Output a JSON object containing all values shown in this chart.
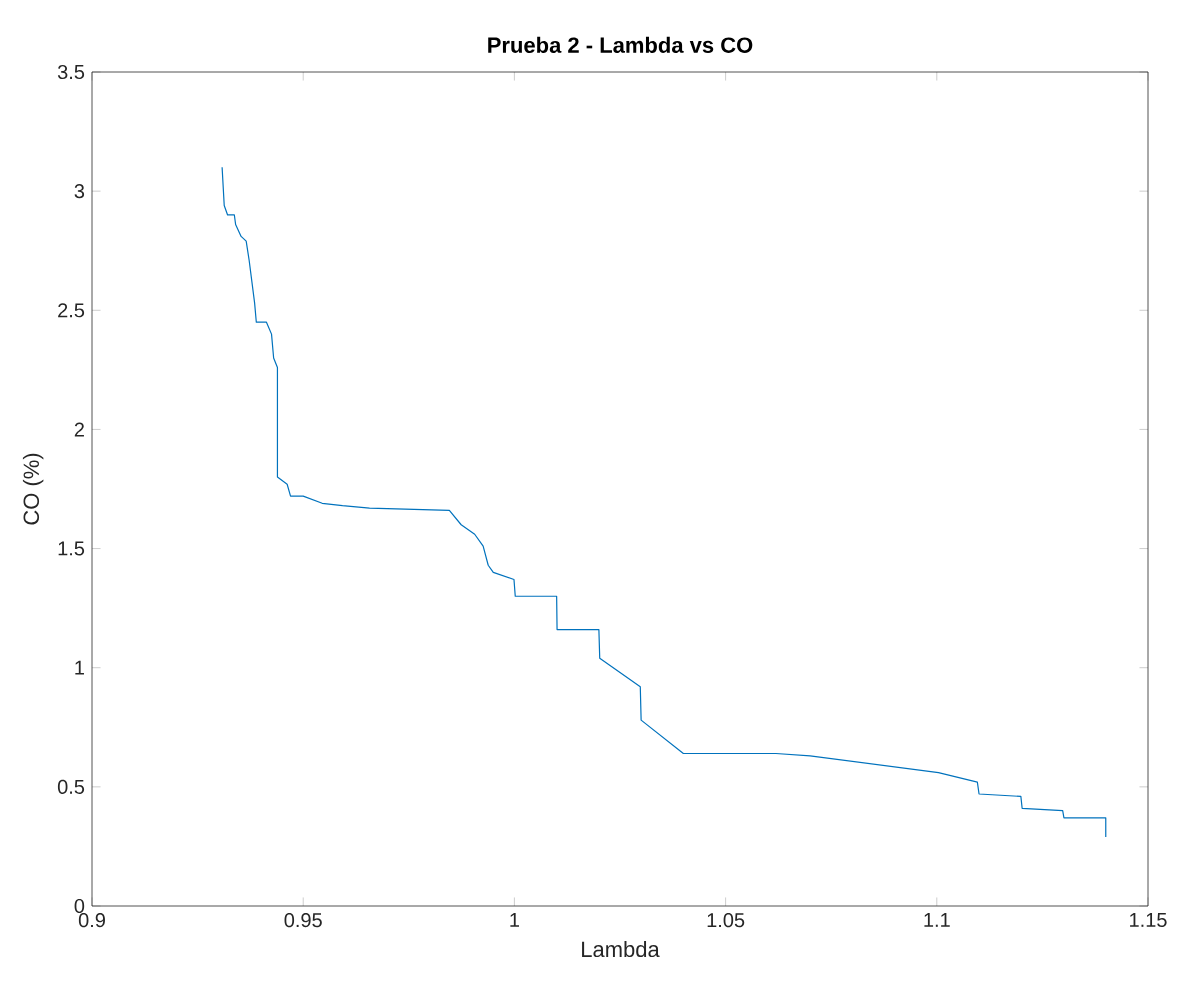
{
  "chart_data": {
    "type": "line",
    "title": "Prueba 2 - Lambda vs CO",
    "xlabel": "Lambda",
    "ylabel": "CO (%)",
    "xlim": [
      0.9,
      1.15
    ],
    "xticks": [
      0.9,
      0.95,
      1,
      1.05,
      1.1,
      1.15
    ],
    "ylim": [
      0,
      3.5
    ],
    "yticks": [
      0,
      0.5,
      1,
      1.5,
      2,
      2.5,
      3,
      3.5
    ],
    "series": [
      {
        "color": "#0072bd",
        "x": [
          0.9308,
          0.9313,
          0.9321,
          0.9337,
          0.934,
          0.9353,
          0.9365,
          0.9372,
          0.9385,
          0.9389,
          0.9413,
          0.9425,
          0.943,
          0.9439,
          0.9439,
          0.9462,
          0.947,
          0.95,
          0.9545,
          0.9593,
          0.9657,
          0.9846,
          0.9874,
          0.9906,
          0.9926,
          0.9938,
          0.995,
          0.9999,
          1.0002,
          1.01,
          1.0101,
          1.02,
          1.0202,
          1.0298,
          1.03,
          1.04,
          1.0619,
          1.07,
          1.1004,
          1.1096,
          1.11,
          1.1199,
          1.1202,
          1.1298,
          1.1301,
          1.14,
          1.14
        ],
        "values": [
          3.1,
          2.94,
          2.9,
          2.9,
          2.86,
          2.81,
          2.79,
          2.71,
          2.53,
          2.45,
          2.45,
          2.4,
          2.3,
          2.26,
          1.8,
          1.77,
          1.72,
          1.72,
          1.69,
          1.68,
          1.67,
          1.66,
          1.6,
          1.56,
          1.51,
          1.43,
          1.4,
          1.37,
          1.3,
          1.3,
          1.16,
          1.16,
          1.04,
          0.92,
          0.78,
          0.64,
          0.64,
          0.63,
          0.56,
          0.52,
          0.47,
          0.46,
          0.41,
          0.4,
          0.37,
          0.37,
          0.29
        ]
      }
    ]
  }
}
